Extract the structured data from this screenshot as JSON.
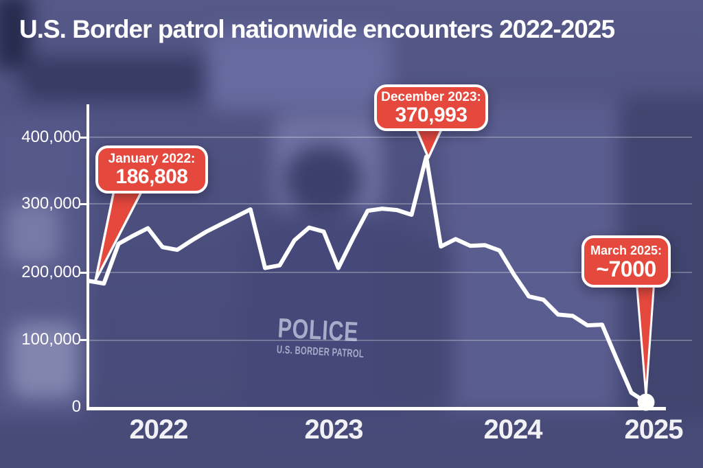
{
  "title": "U.S. Border patrol nationwide encounters 2022-2025",
  "background": {
    "police_line1": "POLICE",
    "police_line2": "U.S. BORDER PATROL"
  },
  "colors": {
    "background_purple": "#4c4f7e",
    "callout_red": "#e5483c",
    "line_white": "#ffffff",
    "text_white": "#ffffff"
  },
  "callouts": [
    {
      "label": "January 2022:",
      "value": "186,808"
    },
    {
      "label": "December 2023:",
      "value": "370,993"
    },
    {
      "label": "March 2025:",
      "value": "~7000"
    }
  ],
  "chart_data": {
    "type": "line",
    "title": "U.S. Border patrol nationwide encounters 2022-2025",
    "x": [
      "Jan 2022",
      "Feb 2022",
      "Mar 2022",
      "Apr 2022",
      "May 2022",
      "Jun 2022",
      "Jul 2022",
      "Aug 2022",
      "Sep 2022",
      "Oct 2022",
      "Nov 2022",
      "Dec 2022",
      "Jan 2023",
      "Feb 2023",
      "Mar 2023",
      "Apr 2023",
      "May 2023",
      "Jun 2023",
      "Jul 2023",
      "Aug 2023",
      "Sep 2023",
      "Oct 2023",
      "Nov 2023",
      "Dec 2023",
      "Jan 2024",
      "Feb 2024",
      "Mar 2024",
      "Apr 2024",
      "May 2024",
      "Jun 2024",
      "Jul 2024",
      "Aug 2024",
      "Sep 2024",
      "Oct 2024",
      "Nov 2024",
      "Dec 2024",
      "Jan 2025",
      "Feb 2025",
      "Mar 2025"
    ],
    "values": [
      186808,
      183000,
      242000,
      254000,
      265000,
      237000,
      233000,
      247000,
      260000,
      271000,
      282000,
      293000,
      206000,
      210000,
      247000,
      266000,
      260000,
      206000,
      250000,
      291000,
      294000,
      292000,
      285000,
      370993,
      238000,
      249000,
      239000,
      240000,
      232000,
      196000,
      164000,
      159000,
      137000,
      135000,
      121000,
      122000,
      71000,
      21000,
      7000
    ],
    "ylim": [
      0,
      400000
    ],
    "yticks": [
      0,
      100000,
      200000,
      300000,
      400000
    ],
    "ytick_labels": [
      "0",
      "100,000",
      "200,000",
      "300,000",
      "400,000"
    ],
    "xtick_labels": [
      "2022",
      "2023",
      "2024",
      "2025"
    ],
    "grid": "horizontal",
    "legend": "none",
    "annotations": [
      {
        "x": "Jan 2022",
        "y": 186808,
        "label": "January 2022: 186,808"
      },
      {
        "x": "Dec 2023",
        "y": 370993,
        "label": "December 2023: 370,993"
      },
      {
        "x": "Mar 2025",
        "y": 7000,
        "label": "March 2025: ~7000"
      }
    ]
  }
}
